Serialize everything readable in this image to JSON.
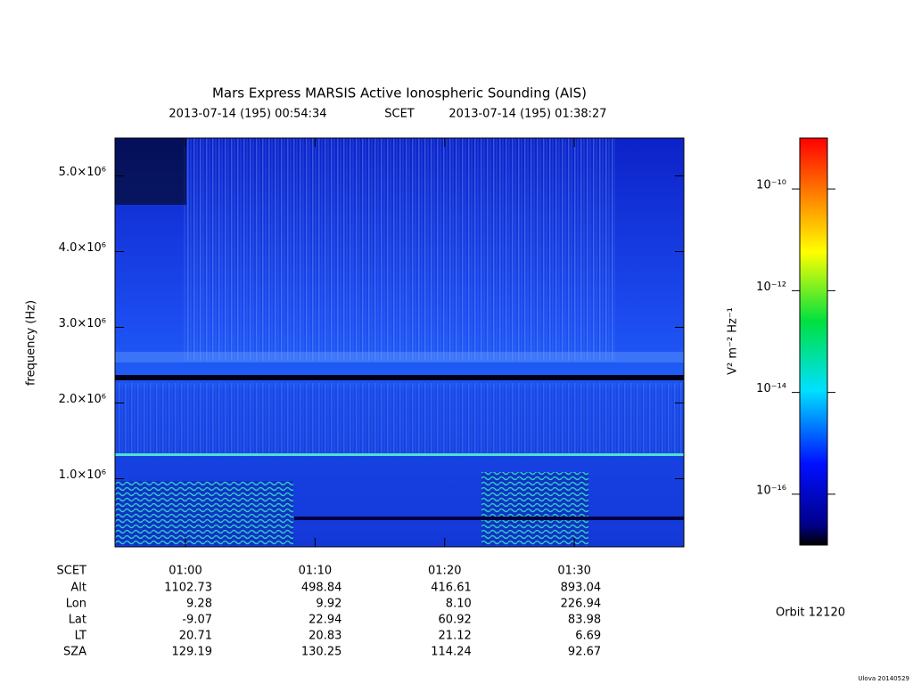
{
  "chart_data": {
    "type": "spectrogram",
    "title": "Mars Express MARSIS Active Ionospheric Sounding (AIS)",
    "subtitle": {
      "start": "2013-07-14 (195) 00:54:34",
      "label": "SCET",
      "end": "2013-07-14 (195) 01:38:27"
    },
    "ylabel": "frequency (Hz)",
    "ylim": [
      100000,
      5500000
    ],
    "yticks": [
      {
        "value": 1000000,
        "label": "1.0×10⁶"
      },
      {
        "value": 2000000,
        "label": "2.0×10⁶"
      },
      {
        "value": 3000000,
        "label": "3.0×10⁶"
      },
      {
        "value": 4000000,
        "label": "4.0×10⁶"
      },
      {
        "value": 5000000,
        "label": "5.0×10⁶"
      }
    ],
    "xlabel": "SCET",
    "xticks": [
      "01:00",
      "01:10",
      "01:20",
      "01:30"
    ],
    "ephemeris": [
      {
        "label": "Alt",
        "values": [
          "1102.73",
          "498.84",
          "416.61",
          "893.04"
        ]
      },
      {
        "label": "Lon",
        "values": [
          "9.28",
          "9.92",
          "8.10",
          "226.94"
        ]
      },
      {
        "label": "Lat",
        "values": [
          "-9.07",
          "22.94",
          "60.92",
          "83.98"
        ]
      },
      {
        "label": "LT",
        "values": [
          "20.71",
          "20.83",
          "21.12",
          "6.69"
        ]
      },
      {
        "label": "SZA",
        "values": [
          "129.19",
          "130.25",
          "114.24",
          "92.67"
        ]
      }
    ],
    "colorbar": {
      "label": "V² m⁻² Hz⁻¹",
      "log": true,
      "lim": [
        1e-17,
        1e-09
      ],
      "ticks": [
        {
          "value": 1e-10,
          "label": "10⁻¹⁰"
        },
        {
          "value": 1e-12,
          "label": "10⁻¹²"
        },
        {
          "value": 1e-14,
          "label": "10⁻¹⁴"
        },
        {
          "value": 1e-16,
          "label": "10⁻¹⁶"
        }
      ]
    },
    "orbit": "Orbit 12120",
    "footer": "Ulova 20140529"
  }
}
